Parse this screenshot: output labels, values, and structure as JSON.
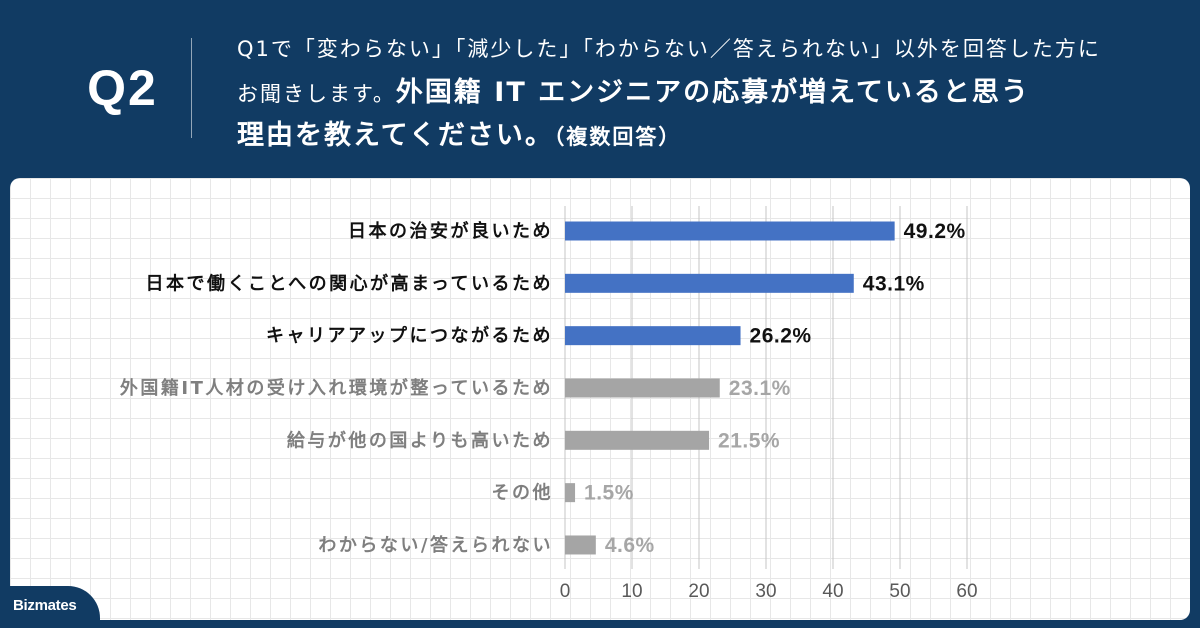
{
  "header": {
    "question_number": "Q2",
    "line1": "Q1で「変わらない」「減少した」「わからない／答えられない」以外を回答した方に",
    "line2_regular": "お聞きします。",
    "line2_bold": "外国籍 IT エンジニアの応募が増えていると思う",
    "line3_bold": "理由を教えてください。",
    "line3_note": "（複数回答）"
  },
  "brand": {
    "logo_text": "Bizmates"
  },
  "colors": {
    "header_bg": "#113b63",
    "highlight_bar": "#4472c4",
    "muted_bar": "#a5a5a5",
    "highlight_text": "#111111",
    "muted_label": "#7f7f7f",
    "muted_value": "#a6a6a6",
    "gridline": "#c4c4c4"
  },
  "chart_data": {
    "type": "bar",
    "orientation": "horizontal",
    "title": "",
    "xlabel": "",
    "ylabel": "",
    "categories": [
      "日本の治安が良いため",
      "日本で働くことへの関心が高まっているため",
      "キャリアアップにつながるため",
      "外国籍IT人材の受け入れ環境が整っているため",
      "給与が他の国よりも高いため",
      "その他",
      "わからない/答えられない"
    ],
    "values": [
      49.2,
      43.1,
      26.2,
      23.1,
      21.5,
      1.5,
      4.6
    ],
    "value_labels": [
      "49.2%",
      "43.1%",
      "26.2%",
      "23.1%",
      "21.5%",
      "1.5%",
      "4.6%"
    ],
    "unit": "%",
    "highlighted": [
      true,
      true,
      true,
      false,
      false,
      false,
      false
    ],
    "xlim": [
      0,
      60
    ],
    "xticks": [
      0,
      10,
      20,
      30,
      40,
      50,
      60
    ],
    "grid": "vertical",
    "legend": "none"
  }
}
